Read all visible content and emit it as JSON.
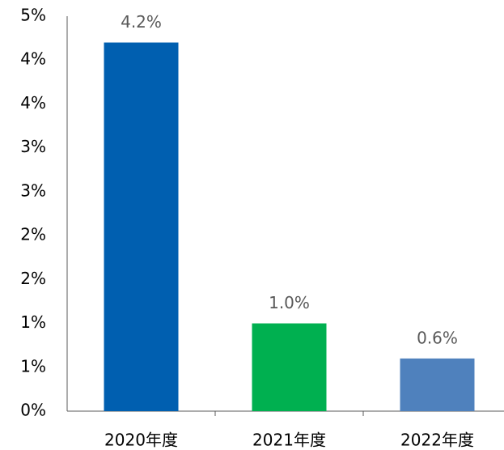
{
  "chart_data": {
    "type": "bar",
    "categories": [
      "2020年度",
      "2021年度",
      "2022年度"
    ],
    "values": [
      4.2,
      1.0,
      0.6
    ],
    "value_labels": [
      "4.2%",
      "1.0%",
      "0.6%"
    ],
    "colors": [
      "#005fb0",
      "#00b050",
      "#4f81bd"
    ],
    "ylim": [
      0,
      4.5
    ],
    "yticks": [
      {
        "value": 0,
        "label": "0%"
      },
      {
        "value": 0.5,
        "label": "1%"
      },
      {
        "value": 1,
        "label": "1%"
      },
      {
        "value": 1.5,
        "label": "2%"
      },
      {
        "value": 2,
        "label": "2%"
      },
      {
        "value": 2.5,
        "label": "3%"
      },
      {
        "value": 3,
        "label": "3%"
      },
      {
        "value": 3.5,
        "label": "4%"
      },
      {
        "value": 4,
        "label": "4%"
      },
      {
        "value": 4.5,
        "label": "5%"
      }
    ],
    "grid": false
  }
}
